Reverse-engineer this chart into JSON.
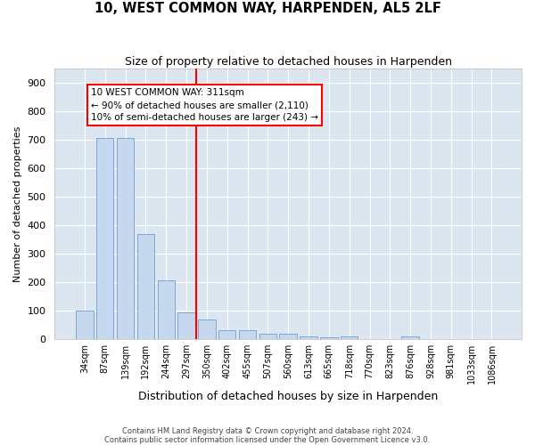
{
  "title": "10, WEST COMMON WAY, HARPENDEN, AL5 2LF",
  "subtitle": "Size of property relative to detached houses in Harpenden",
  "xlabel": "Distribution of detached houses by size in Harpenden",
  "ylabel": "Number of detached properties",
  "bar_color": "#c5d8ed",
  "bar_edge_color": "#5b8fc9",
  "plot_bg_color": "#dce6f1",
  "fig_bg_color": "#ffffff",
  "grid_color": "#ffffff",
  "categories": [
    "34sqm",
    "87sqm",
    "139sqm",
    "192sqm",
    "244sqm",
    "297sqm",
    "350sqm",
    "402sqm",
    "455sqm",
    "507sqm",
    "560sqm",
    "613sqm",
    "665sqm",
    "718sqm",
    "770sqm",
    "823sqm",
    "876sqm",
    "928sqm",
    "981sqm",
    "1033sqm",
    "1086sqm"
  ],
  "values": [
    100,
    707,
    707,
    370,
    205,
    95,
    70,
    30,
    32,
    18,
    18,
    10,
    7,
    8,
    0,
    0,
    8,
    0,
    0,
    0,
    0
  ],
  "ylim": [
    0,
    950
  ],
  "yticks": [
    0,
    100,
    200,
    300,
    400,
    500,
    600,
    700,
    800,
    900
  ],
  "property_line_x": 5.5,
  "property_label": "10 WEST COMMON WAY: 311sqm",
  "annotation_line1": "← 90% of detached houses are smaller (2,110)",
  "annotation_line2": "10% of semi-detached houses are larger (243) →",
  "footer_line1": "Contains HM Land Registry data © Crown copyright and database right 2024.",
  "footer_line2": "Contains public sector information licensed under the Open Government Licence v3.0."
}
